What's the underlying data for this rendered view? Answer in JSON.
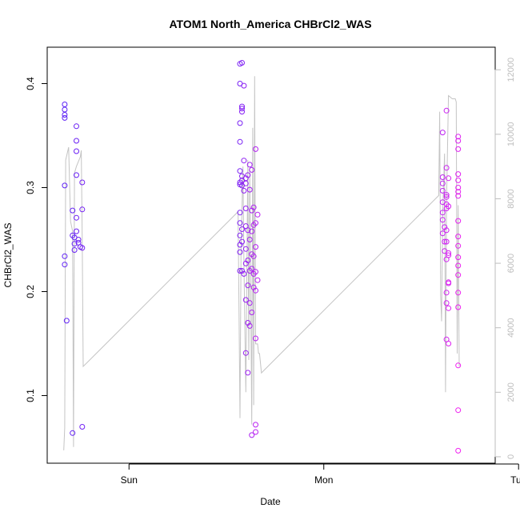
{
  "chart_data": {
    "type": "scatter",
    "title": "ATOM1 North_America CHBrCl2_WAS",
    "xlabel": "Date",
    "ylabel": "CHBrCl2_WAS",
    "x_ticks": [
      "Sun",
      "Mon",
      "Tue"
    ],
    "x_tick_positions_days": [
      0,
      1,
      2
    ],
    "ylim": [
      0.035,
      0.435
    ],
    "y_ticks": [
      0.1,
      0.2,
      0.3,
      0.4
    ],
    "y_tick_labels": [
      "0.1",
      "0.2",
      "0.3",
      "0.4"
    ],
    "y2lim": [
      -200,
      12700
    ],
    "y2_ticks": [
      0,
      2000,
      4000,
      6000,
      8000,
      10000,
      12000
    ],
    "y2_tick_labels": [
      "0",
      "2000",
      "4000",
      "6000",
      "8000",
      "10000",
      "12000"
    ],
    "x_units": "days relative to Sunday 00:00",
    "grid": false,
    "point_color_start": "#5a20f5",
    "point_color_end": "#f020f0",
    "altitude_line_color": "#c4c4c4",
    "series": [
      {
        "values": [
          [
            -0.33,
            0.38
          ],
          [
            -0.33,
            0.375
          ],
          [
            -0.33,
            0.37
          ],
          [
            -0.33,
            0.367
          ],
          [
            -0.33,
            0.302
          ],
          [
            -0.33,
            0.234
          ],
          [
            -0.33,
            0.226
          ],
          [
            -0.32,
            0.172
          ],
          [
            -0.29,
            0.064
          ],
          [
            -0.29,
            0.278
          ],
          [
            -0.29,
            0.254
          ],
          [
            -0.28,
            0.252
          ],
          [
            -0.28,
            0.246
          ],
          [
            -0.28,
            0.24
          ],
          [
            -0.27,
            0.312
          ],
          [
            -0.27,
            0.359
          ],
          [
            -0.27,
            0.345
          ],
          [
            -0.27,
            0.335
          ],
          [
            -0.27,
            0.271
          ],
          [
            -0.27,
            0.258
          ],
          [
            -0.26,
            0.25
          ],
          [
            -0.26,
            0.247
          ],
          [
            -0.25,
            0.243
          ],
          [
            -0.24,
            0.07
          ],
          [
            -0.24,
            0.305
          ],
          [
            -0.24,
            0.279
          ],
          [
            -0.24,
            0.242
          ],
          [
            0.57,
            0.419
          ],
          [
            0.57,
            0.4
          ],
          [
            0.57,
            0.362
          ],
          [
            0.57,
            0.344
          ],
          [
            0.57,
            0.316
          ],
          [
            0.57,
            0.305
          ],
          [
            0.57,
            0.303
          ],
          [
            0.57,
            0.276
          ],
          [
            0.57,
            0.266
          ],
          [
            0.57,
            0.254
          ],
          [
            0.57,
            0.245
          ],
          [
            0.57,
            0.238
          ],
          [
            0.57,
            0.22
          ],
          [
            0.58,
            0.42
          ],
          [
            0.58,
            0.378
          ],
          [
            0.58,
            0.376
          ],
          [
            0.58,
            0.373
          ],
          [
            0.58,
            0.311
          ],
          [
            0.58,
            0.307
          ],
          [
            0.58,
            0.302
          ],
          [
            0.58,
            0.26
          ],
          [
            0.58,
            0.248
          ],
          [
            0.58,
            0.22
          ],
          [
            0.59,
            0.398
          ],
          [
            0.59,
            0.326
          ],
          [
            0.59,
            0.297
          ],
          [
            0.59,
            0.217
          ],
          [
            0.6,
            0.309
          ],
          [
            0.6,
            0.304
          ],
          [
            0.6,
            0.28
          ],
          [
            0.6,
            0.263
          ],
          [
            0.6,
            0.241
          ],
          [
            0.6,
            0.227
          ],
          [
            0.6,
            0.192
          ],
          [
            0.6,
            0.141
          ],
          [
            0.61,
            0.312
          ],
          [
            0.61,
            0.259
          ],
          [
            0.61,
            0.23
          ],
          [
            0.61,
            0.206
          ],
          [
            0.61,
            0.17
          ],
          [
            0.61,
            0.122
          ],
          [
            0.62,
            0.322
          ],
          [
            0.62,
            0.298
          ],
          [
            0.62,
            0.25
          ],
          [
            0.62,
            0.22
          ],
          [
            0.62,
            0.189
          ],
          [
            0.62,
            0.167
          ],
          [
            0.63,
            0.317
          ],
          [
            0.63,
            0.278
          ],
          [
            0.63,
            0.258
          ],
          [
            0.63,
            0.236
          ],
          [
            0.63,
            0.222
          ],
          [
            0.63,
            0.18
          ],
          [
            0.63,
            0.062
          ],
          [
            0.64,
            0.281
          ],
          [
            0.64,
            0.264
          ],
          [
            0.64,
            0.234
          ],
          [
            0.64,
            0.217
          ],
          [
            0.64,
            0.204
          ],
          [
            0.65,
            0.337
          ],
          [
            0.65,
            0.266
          ],
          [
            0.65,
            0.243
          ],
          [
            0.65,
            0.219
          ],
          [
            0.65,
            0.201
          ],
          [
            0.65,
            0.155
          ],
          [
            0.65,
            0.072
          ],
          [
            0.65,
            0.065
          ],
          [
            0.66,
            0.274
          ],
          [
            0.66,
            0.211
          ],
          [
            1.61,
            0.353
          ],
          [
            1.61,
            0.31
          ],
          [
            1.61,
            0.304
          ],
          [
            1.61,
            0.297
          ],
          [
            1.61,
            0.286
          ],
          [
            1.61,
            0.276
          ],
          [
            1.61,
            0.269
          ],
          [
            1.61,
            0.256
          ],
          [
            1.62,
            0.262
          ],
          [
            1.62,
            0.248
          ],
          [
            1.62,
            0.239
          ],
          [
            1.63,
            0.374
          ],
          [
            1.63,
            0.319
          ],
          [
            1.63,
            0.293
          ],
          [
            1.63,
            0.291
          ],
          [
            1.63,
            0.284
          ],
          [
            1.63,
            0.28
          ],
          [
            1.63,
            0.259
          ],
          [
            1.63,
            0.248
          ],
          [
            1.63,
            0.231
          ],
          [
            1.63,
            0.199
          ],
          [
            1.63,
            0.189
          ],
          [
            1.63,
            0.154
          ],
          [
            1.64,
            0.309
          ],
          [
            1.64,
            0.282
          ],
          [
            1.64,
            0.237
          ],
          [
            1.64,
            0.235
          ],
          [
            1.64,
            0.209
          ],
          [
            1.64,
            0.208
          ],
          [
            1.64,
            0.184
          ],
          [
            1.64,
            0.15
          ],
          [
            1.69,
            0.349
          ],
          [
            1.69,
            0.345
          ],
          [
            1.69,
            0.337
          ],
          [
            1.69,
            0.313
          ],
          [
            1.69,
            0.307
          ],
          [
            1.69,
            0.3
          ],
          [
            1.69,
            0.296
          ],
          [
            1.69,
            0.292
          ],
          [
            1.69,
            0.268
          ],
          [
            1.69,
            0.253
          ],
          [
            1.69,
            0.244
          ],
          [
            1.69,
            0.233
          ],
          [
            1.69,
            0.225
          ],
          [
            1.69,
            0.216
          ],
          [
            1.69,
            0.199
          ],
          [
            1.69,
            0.185
          ],
          [
            1.69,
            0.129
          ],
          [
            1.69,
            0.086
          ],
          [
            1.69,
            0.047
          ]
        ]
      },
      {
        "axis": "right",
        "values": [
          [
            -0.335,
            200
          ],
          [
            -0.33,
            900
          ],
          [
            -0.325,
            9200
          ],
          [
            -0.31,
            9600
          ],
          [
            -0.3,
            7300
          ],
          [
            -0.29,
            7000
          ],
          [
            -0.285,
            300
          ],
          [
            -0.28,
            8800
          ],
          [
            -0.27,
            9000
          ],
          [
            -0.25,
            9300
          ],
          [
            -0.245,
            9500
          ],
          [
            -0.24,
            6700
          ],
          [
            -0.235,
            2800
          ],
          [
            0.56,
            7600
          ],
          [
            0.57,
            1200
          ],
          [
            0.575,
            6400
          ],
          [
            0.585,
            9000
          ],
          [
            0.59,
            6000
          ],
          [
            0.6,
            2000
          ],
          [
            0.61,
            9200
          ],
          [
            0.615,
            3000
          ],
          [
            0.62,
            8900
          ],
          [
            0.63,
            1000
          ],
          [
            0.635,
            10200
          ],
          [
            0.64,
            1600
          ],
          [
            0.645,
            11800
          ],
          [
            0.65,
            3500
          ],
          [
            0.66,
            3500
          ],
          [
            0.665,
            3200
          ],
          [
            0.67,
            3200
          ],
          [
            0.68,
            2600
          ],
          [
            1.59,
            8100
          ],
          [
            1.595,
            10700
          ],
          [
            1.6,
            5000
          ],
          [
            1.605,
            4200
          ],
          [
            1.61,
            7500
          ],
          [
            1.62,
            9400
          ],
          [
            1.625,
            2000
          ],
          [
            1.63,
            7800
          ],
          [
            1.64,
            11200
          ],
          [
            1.66,
            11100
          ],
          [
            1.675,
            11100
          ],
          [
            1.68,
            11000
          ],
          [
            1.685,
            3200
          ],
          [
            1.69,
            7800
          ],
          [
            1.695,
            2800
          ]
        ]
      }
    ]
  }
}
